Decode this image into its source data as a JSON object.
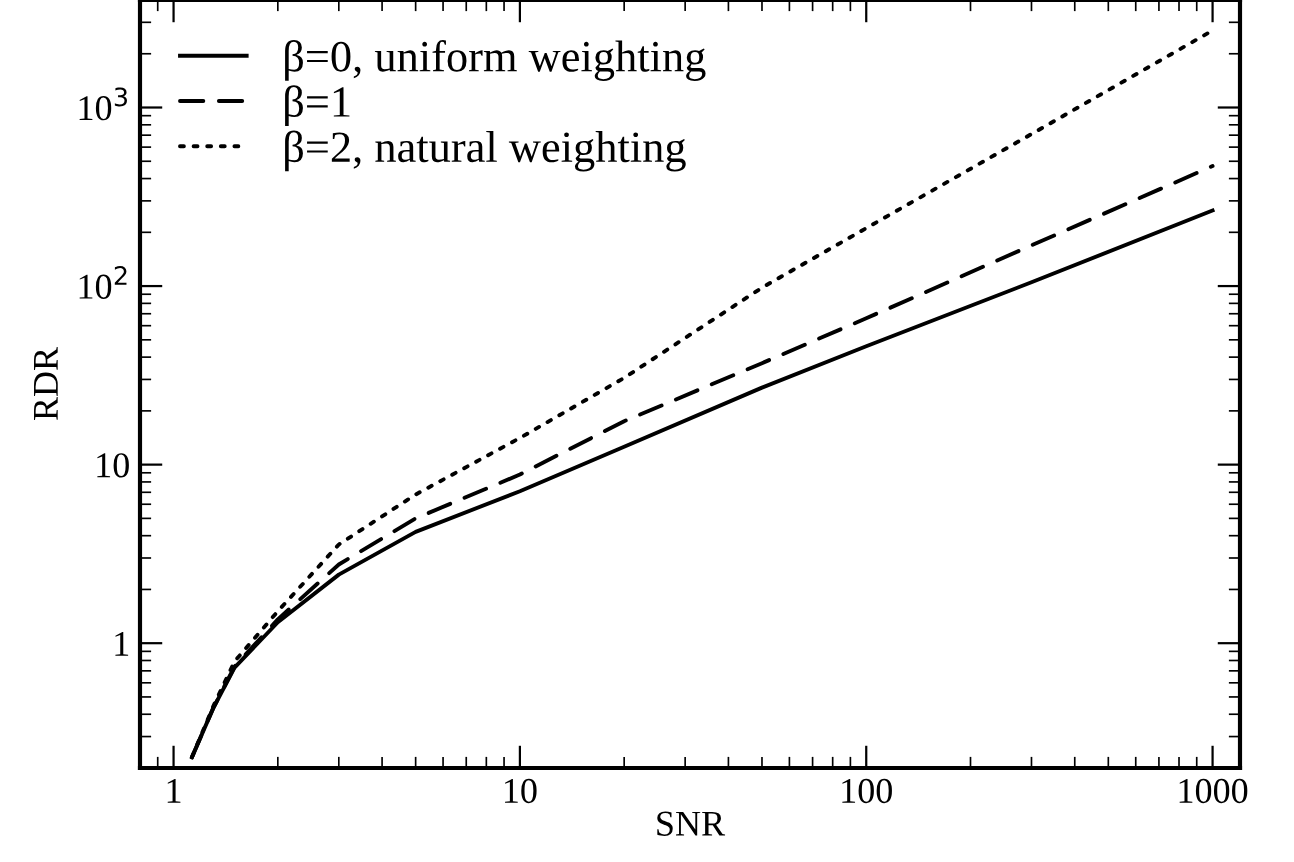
{
  "chart_data": {
    "type": "line",
    "xlabel": "SNR",
    "ylabel": "RDR",
    "log": "xy",
    "grid": false,
    "legend": "top left",
    "marker": "none",
    "x": [
      1.13,
      1.3,
      1.5,
      2,
      3,
      5,
      10,
      20,
      50,
      100,
      300,
      1000
    ],
    "xlim": [
      0.8,
      1200
    ],
    "ylim": [
      0.2,
      4000
    ],
    "xticks": [
      1,
      10,
      100,
      1000
    ],
    "yticks": [
      1,
      10,
      {
        "value": 100,
        "label": "10$^{2}$"
      },
      {
        "value": 1000,
        "label": "10$^{3}$"
      }
    ],
    "series": [
      {
        "name": "β=0, uniform weighting",
        "color": "#000000",
        "line_style": "solid",
        "values": [
          0.23,
          0.43,
          0.73,
          1.31,
          2.42,
          4.2,
          7.1,
          12.6,
          27,
          46,
          105,
          265
        ]
      },
      {
        "name": "β=1",
        "color": "#000000",
        "line_style": "dashed",
        "values": [
          0.23,
          0.43,
          0.74,
          1.36,
          2.76,
          5,
          8.8,
          17.5,
          37,
          66,
          169,
          470
        ]
      },
      {
        "name": "β=2, natural weighting",
        "color": "#000000",
        "line_style": "dotted",
        "values": [
          0.23,
          0.44,
          0.79,
          1.51,
          3.57,
          6.8,
          14.1,
          30.6,
          98,
          211,
          710,
          2700
        ]
      }
    ]
  }
}
